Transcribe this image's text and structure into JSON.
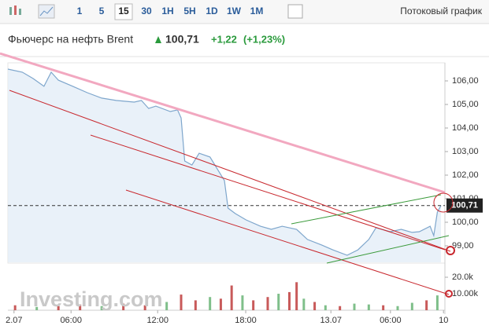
{
  "toolbar": {
    "intervals": [
      "1",
      "5",
      "15",
      "30",
      "1H",
      "5H",
      "1D",
      "1W",
      "1M"
    ],
    "selected_index": 2,
    "stream_label": "Потоковый график"
  },
  "header": {
    "title": "Фьючерс на нефть Brent",
    "change": "+1,22",
    "change_pct": "(+1,23%)"
  },
  "watermark": "Investing.com",
  "chart_data": {
    "type": "area",
    "x": [
      0,
      4,
      7,
      10,
      12,
      14,
      18,
      22,
      26,
      30,
      35,
      37,
      39,
      41,
      45,
      47,
      48,
      49,
      51,
      53,
      56,
      58,
      60,
      61,
      63,
      66,
      70,
      73,
      76,
      80,
      83,
      87,
      90,
      94,
      97,
      100,
      102,
      106,
      109,
      112,
      114,
      117,
      118,
      119,
      120
    ],
    "values": [
      106.5,
      106.37,
      106.1,
      105.77,
      106.37,
      106.03,
      105.77,
      105.5,
      105.27,
      105.17,
      105.1,
      105.17,
      104.83,
      104.93,
      104.7,
      104.77,
      104.43,
      102.6,
      102.43,
      102.93,
      102.77,
      102.27,
      101.77,
      100.6,
      100.37,
      100.1,
      99.83,
      99.7,
      99.83,
      99.7,
      99.27,
      99.03,
      98.83,
      98.6,
      98.83,
      99.27,
      99.77,
      99.6,
      99.7,
      99.57,
      99.6,
      99.83,
      99.43,
      100.43,
      100.71
    ],
    "color": "#7ea6cc",
    "xlim": [
      0,
      120
    ],
    "xticks": [
      {
        "value": 1.7,
        "label": "2.07"
      },
      {
        "value": 17.5,
        "label": "06:00"
      },
      {
        "value": 41.5,
        "label": "12:00"
      },
      {
        "value": 65.9,
        "label": "18:00"
      },
      {
        "value": 89.5,
        "label": "13.07"
      },
      {
        "value": 106,
        "label": "06:00"
      },
      {
        "value": 120.7,
        "label": "10"
      }
    ],
    "ylim": [
      98.3,
      106.6
    ],
    "yticks": [
      {
        "value": 106,
        "label": "106,00"
      },
      {
        "value": 105,
        "label": "105,00"
      },
      {
        "value": 104,
        "label": "104,00"
      },
      {
        "value": 103,
        "label": "103,00"
      },
      {
        "value": 102,
        "label": "102,00"
      },
      {
        "value": 101,
        "label": "101,00"
      },
      {
        "value": 100,
        "label": "100,00"
      },
      {
        "value": 99,
        "label": "99,00"
      }
    ],
    "current_price": {
      "value": 100.71,
      "label": "100,71"
    },
    "volume": {
      "x": [
        2,
        8,
        14,
        20,
        26,
        32,
        38,
        44,
        48,
        52,
        56,
        59,
        62,
        65,
        68,
        72,
        75,
        78,
        80,
        82,
        85,
        88,
        92,
        96,
        100,
        104,
        108,
        112,
        116,
        119
      ],
      "values": [
        3000,
        2000,
        2500,
        3500,
        2500,
        4000,
        3000,
        5000,
        9500,
        6000,
        8000,
        7000,
        15000,
        9000,
        6000,
        8000,
        10000,
        11000,
        17000,
        7000,
        5000,
        3000,
        2500,
        4000,
        3500,
        3000,
        2500,
        4500,
        6000,
        9000
      ],
      "bar_colors": [
        "#c85a5a",
        "#7fbf8a",
        "#c85a5a",
        "#c85a5a",
        "#7fbf8a",
        "#c85a5a",
        "#c85a5a",
        "#7fbf8a",
        "#c85a5a",
        "#c85a5a",
        "#7fbf8a",
        "#c85a5a",
        "#c85a5a",
        "#7fbf8a",
        "#c85a5a",
        "#c85a5a",
        "#7fbf8a",
        "#c85a5a",
        "#c85a5a",
        "#7fbf8a",
        "#c85a5a",
        "#7fbf8a",
        "#c85a5a",
        "#7fbf8a",
        "#7fbf8a",
        "#c85a5a",
        "#7fbf8a",
        "#7fbf8a",
        "#c85a5a",
        "#7fbf8a"
      ],
      "ylim": [
        0,
        26200
      ],
      "yticks": [
        {
          "value": 20000,
          "label": "20.0k"
        },
        {
          "value": 10000,
          "label": "10.00k"
        }
      ]
    }
  }
}
